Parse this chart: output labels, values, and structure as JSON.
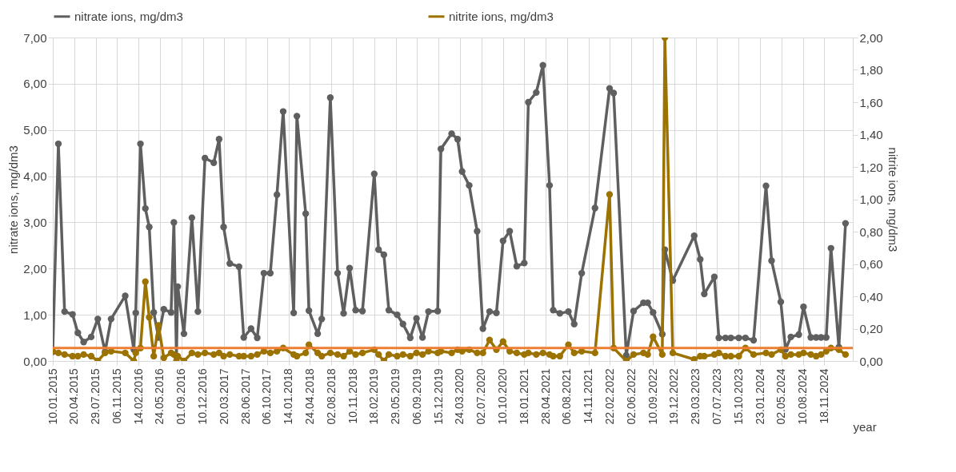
{
  "chart_data": {
    "type": "line",
    "xlabel": "year",
    "ylabel": "nitrate ions, mg/dm3",
    "y2label": "nitrite ions, mg/dm3",
    "x": [
      "2015-01-10",
      "2015-02-05",
      "2015-03-06",
      "2015-04-12",
      "2015-05-07",
      "2015-06-03",
      "2015-07-08",
      "2015-08-08",
      "2015-09-11",
      "2015-10-09",
      "2015-12-14",
      "2016-01-23",
      "2016-02-01",
      "2016-02-23",
      "2016-03-17",
      "2016-04-04",
      "2016-04-25",
      "2016-05-17",
      "2016-06-11",
      "2016-07-15",
      "2016-07-28",
      "2016-08-09",
      "2016-08-15",
      "2016-09-13",
      "2016-10-20",
      "2016-11-17",
      "2016-12-20",
      "2017-01-30",
      "2017-02-24",
      "2017-03-17",
      "2017-04-15",
      "2017-05-28",
      "2017-06-19",
      "2017-07-23",
      "2017-08-21",
      "2017-09-21",
      "2017-10-21",
      "2017-11-21",
      "2017-12-20",
      "2018-02-07",
      "2018-02-22",
      "2018-04-04",
      "2018-04-19",
      "2018-05-30",
      "2018-06-18",
      "2018-07-28",
      "2018-08-31",
      "2018-09-28",
      "2018-10-26",
      "2018-11-23",
      "2018-12-25",
      "2019-02-18",
      "2019-03-10",
      "2019-04-04",
      "2019-04-27",
      "2019-06-05",
      "2019-07-02",
      "2019-08-05",
      "2019-09-03",
      "2019-10-01",
      "2019-10-29",
      "2019-12-11",
      "2019-12-26",
      "2020-02-14",
      "2020-03-13",
      "2020-04-03",
      "2020-05-06",
      "2020-06-12",
      "2020-07-09",
      "2020-08-09",
      "2020-09-10",
      "2020-10-11",
      "2020-11-11",
      "2020-12-14",
      "2021-01-18",
      "2021-02-06",
      "2021-03-15",
      "2021-04-15",
      "2021-05-16",
      "2021-06-02",
      "2021-07-03",
      "2021-08-12",
      "2021-09-08",
      "2021-10-13",
      "2021-12-14",
      "2022-02-20",
      "2022-03-11",
      "2022-05-09",
      "2022-06-12",
      "2022-07-28",
      "2022-08-17",
      "2022-09-11",
      "2022-10-24",
      "2022-11-05",
      "2022-12-12",
      "2023-03-22",
      "2023-04-19",
      "2023-05-08",
      "2023-06-24",
      "2023-07-15",
      "2023-08-15",
      "2023-09-09",
      "2023-10-16",
      "2023-11-16",
      "2023-12-24",
      "2024-02-20",
      "2024-03-17",
      "2024-04-29",
      "2024-05-21",
      "2024-06-15",
      "2024-07-22",
      "2024-08-13",
      "2024-09-16",
      "2024-10-11",
      "2024-11-03",
      "2024-11-27",
      "2024-12-19",
      "2025-01-25",
      "2025-02-25"
    ],
    "series": [
      {
        "name": "nitrate ions, mg/dm3",
        "color": "#5f5f5f",
        "values": [
          0.2,
          4.7,
          1.07,
          1.01,
          0.61,
          0.41,
          0.52,
          0.91,
          0.2,
          0.91,
          1.41,
          0.25,
          1.04,
          4.7,
          3.3,
          2.9,
          1.05,
          0.51,
          1.12,
          1.05,
          3.0,
          0.1,
          1.61,
          0.59,
          3.1,
          1.07,
          4.39,
          4.29,
          4.8,
          2.9,
          2.11,
          2.04,
          0.51,
          0.7,
          0.5,
          1.9,
          1.9,
          3.6,
          5.4,
          1.04,
          5.3,
          3.19,
          1.09,
          0.59,
          0.91,
          5.7,
          1.9,
          1.03,
          2.01,
          1.1,
          1.08,
          4.05,
          2.41,
          2.3,
          1.1,
          1.0,
          0.8,
          0.5,
          0.92,
          0.51,
          1.07,
          1.08,
          4.59,
          4.92,
          4.8,
          4.1,
          3.8,
          2.81,
          0.7,
          1.07,
          1.04,
          2.6,
          2.81,
          2.05,
          2.12,
          5.6,
          5.81,
          6.4,
          3.8,
          1.1,
          1.03,
          1.07,
          0.8,
          1.9,
          3.31,
          5.9,
          5.8,
          0.12,
          1.08,
          1.26,
          1.26,
          1.05,
          0.58,
          2.41,
          1.74,
          2.71,
          2.2,
          1.45,
          1.82,
          0.5,
          0.5,
          0.5,
          0.5,
          0.5,
          0.45,
          3.79,
          2.17,
          1.28,
          0.25,
          0.52,
          0.57,
          1.17,
          0.51,
          0.51,
          0.51,
          0.51,
          2.44,
          0.3,
          2.98
        ]
      },
      {
        "name": "nitrite ions, mg/dm3",
        "color": "#9c7300",
        "axis": "y2",
        "values": [
          0.06,
          0.05,
          0.04,
          0.03,
          0.03,
          0.04,
          0.03,
          0.0,
          0.05,
          0.06,
          0.05,
          0.0,
          0.05,
          0.08,
          0.49,
          0.27,
          0.03,
          0.22,
          0.02,
          0.05,
          0.04,
          0.0,
          0.03,
          0.0,
          0.05,
          0.04,
          0.05,
          0.04,
          0.05,
          0.03,
          0.04,
          0.03,
          0.03,
          0.03,
          0.04,
          0.06,
          0.05,
          0.06,
          0.08,
          0.04,
          0.03,
          0.05,
          0.1,
          0.05,
          0.03,
          0.05,
          0.04,
          0.03,
          0.06,
          0.04,
          0.05,
          0.07,
          0.04,
          0.0,
          0.04,
          0.03,
          0.04,
          0.03,
          0.05,
          0.04,
          0.06,
          0.05,
          0.06,
          0.05,
          0.07,
          0.06,
          0.07,
          0.05,
          0.05,
          0.13,
          0.07,
          0.12,
          0.06,
          0.05,
          0.04,
          0.05,
          0.04,
          0.05,
          0.04,
          0.03,
          0.03,
          0.1,
          0.05,
          0.06,
          0.05,
          1.03,
          0.08,
          0.0,
          0.04,
          0.05,
          0.04,
          0.15,
          0.04,
          2.0,
          0.05,
          0.01,
          0.03,
          0.03,
          0.04,
          0.05,
          0.03,
          0.03,
          0.03,
          0.08,
          0.04,
          0.05,
          0.04,
          0.07,
          0.03,
          0.04,
          0.04,
          0.05,
          0.04,
          0.03,
          0.04,
          0.06,
          0.08,
          0.07,
          0.04
        ]
      }
    ],
    "xlim": [
      "2015-01-10",
      "2025-03-31"
    ],
    "xticks": [
      {
        "value": "2015-01-10",
        "label": "10.01.2015"
      },
      {
        "value": "2015-04-20",
        "label": "20.04.2015"
      },
      {
        "value": "2015-07-29",
        "label": "29.07.2015"
      },
      {
        "value": "2015-11-06",
        "label": "06.11.2015"
      },
      {
        "value": "2016-02-14",
        "label": "14.02.2016"
      },
      {
        "value": "2016-05-24",
        "label": "24.05.2016"
      },
      {
        "value": "2016-09-01",
        "label": "01.09.2016"
      },
      {
        "value": "2016-12-10",
        "label": "10.12.2016"
      },
      {
        "value": "2017-03-20",
        "label": "20.03.2017"
      },
      {
        "value": "2017-06-28",
        "label": "28.06.2017"
      },
      {
        "value": "2017-10-06",
        "label": "06.10.2017"
      },
      {
        "value": "2018-01-14",
        "label": "14.01.2018"
      },
      {
        "value": "2018-04-24",
        "label": "24.04.2018"
      },
      {
        "value": "2018-08-02",
        "label": "02.08.2018"
      },
      {
        "value": "2018-11-10",
        "label": "10.11.2018"
      },
      {
        "value": "2019-02-18",
        "label": "18.02.2019"
      },
      {
        "value": "2019-05-29",
        "label": "29.05.2019"
      },
      {
        "value": "2019-09-06",
        "label": "06.09.2019"
      },
      {
        "value": "2019-12-15",
        "label": "15.12.2019"
      },
      {
        "value": "2020-03-24",
        "label": "24.03.2020"
      },
      {
        "value": "2020-07-02",
        "label": "02.07.2020"
      },
      {
        "value": "2020-10-10",
        "label": "10.10.2020"
      },
      {
        "value": "2021-01-18",
        "label": "18.01.2021"
      },
      {
        "value": "2021-04-28",
        "label": "28.04.2021"
      },
      {
        "value": "2021-08-06",
        "label": "06.08.2021"
      },
      {
        "value": "2021-11-14",
        "label": "14.11.2021"
      },
      {
        "value": "2022-02-22",
        "label": "22.02.2022"
      },
      {
        "value": "2022-06-02",
        "label": "02.06.2022"
      },
      {
        "value": "2022-09-10",
        "label": "10.09.2022"
      },
      {
        "value": "2022-12-19",
        "label": "19.12.2022"
      },
      {
        "value": "2023-03-29",
        "label": "29.03.2023"
      },
      {
        "value": "2023-07-07",
        "label": "07.07.2023"
      },
      {
        "value": "2023-10-15",
        "label": "15.10.2023"
      },
      {
        "value": "2024-01-23",
        "label": "23.01.2024"
      },
      {
        "value": "2024-05-02",
        "label": "02.05.2024"
      },
      {
        "value": "2024-08-10",
        "label": "10.08.2024"
      },
      {
        "value": "2024-11-18",
        "label": "18.11.2024"
      }
    ],
    "ylim": [
      0,
      7
    ],
    "yticks": [
      {
        "value": 0,
        "label": "0,00"
      },
      {
        "value": 1,
        "label": "1,00"
      },
      {
        "value": 2,
        "label": "2,00"
      },
      {
        "value": 3,
        "label": "3,00"
      },
      {
        "value": 4,
        "label": "4,00"
      },
      {
        "value": 5,
        "label": "5,00"
      },
      {
        "value": 6,
        "label": "6,00"
      },
      {
        "value": 7,
        "label": "7,00"
      }
    ],
    "y2lim": [
      0,
      2
    ],
    "y2ticks": [
      {
        "value": 0,
        "label": "0,00"
      },
      {
        "value": 0.2,
        "label": "0,20"
      },
      {
        "value": 0.4,
        "label": "0,40"
      },
      {
        "value": 0.6,
        "label": "0,60"
      },
      {
        "value": 0.8,
        "label": "0,80"
      },
      {
        "value": 1,
        "label": "1,00"
      },
      {
        "value": 1.2,
        "label": "1,20"
      },
      {
        "value": 1.4,
        "label": "1,40"
      },
      {
        "value": 1.6,
        "label": "1,60"
      },
      {
        "value": 1.8,
        "label": "1,80"
      },
      {
        "value": 2,
        "label": "2,00"
      }
    ],
    "ref_lines": [
      {
        "axis": "y2",
        "value": 0.08,
        "color": "#ed7d31"
      }
    ],
    "grid": true,
    "legend": "top",
    "marker": "circle"
  }
}
